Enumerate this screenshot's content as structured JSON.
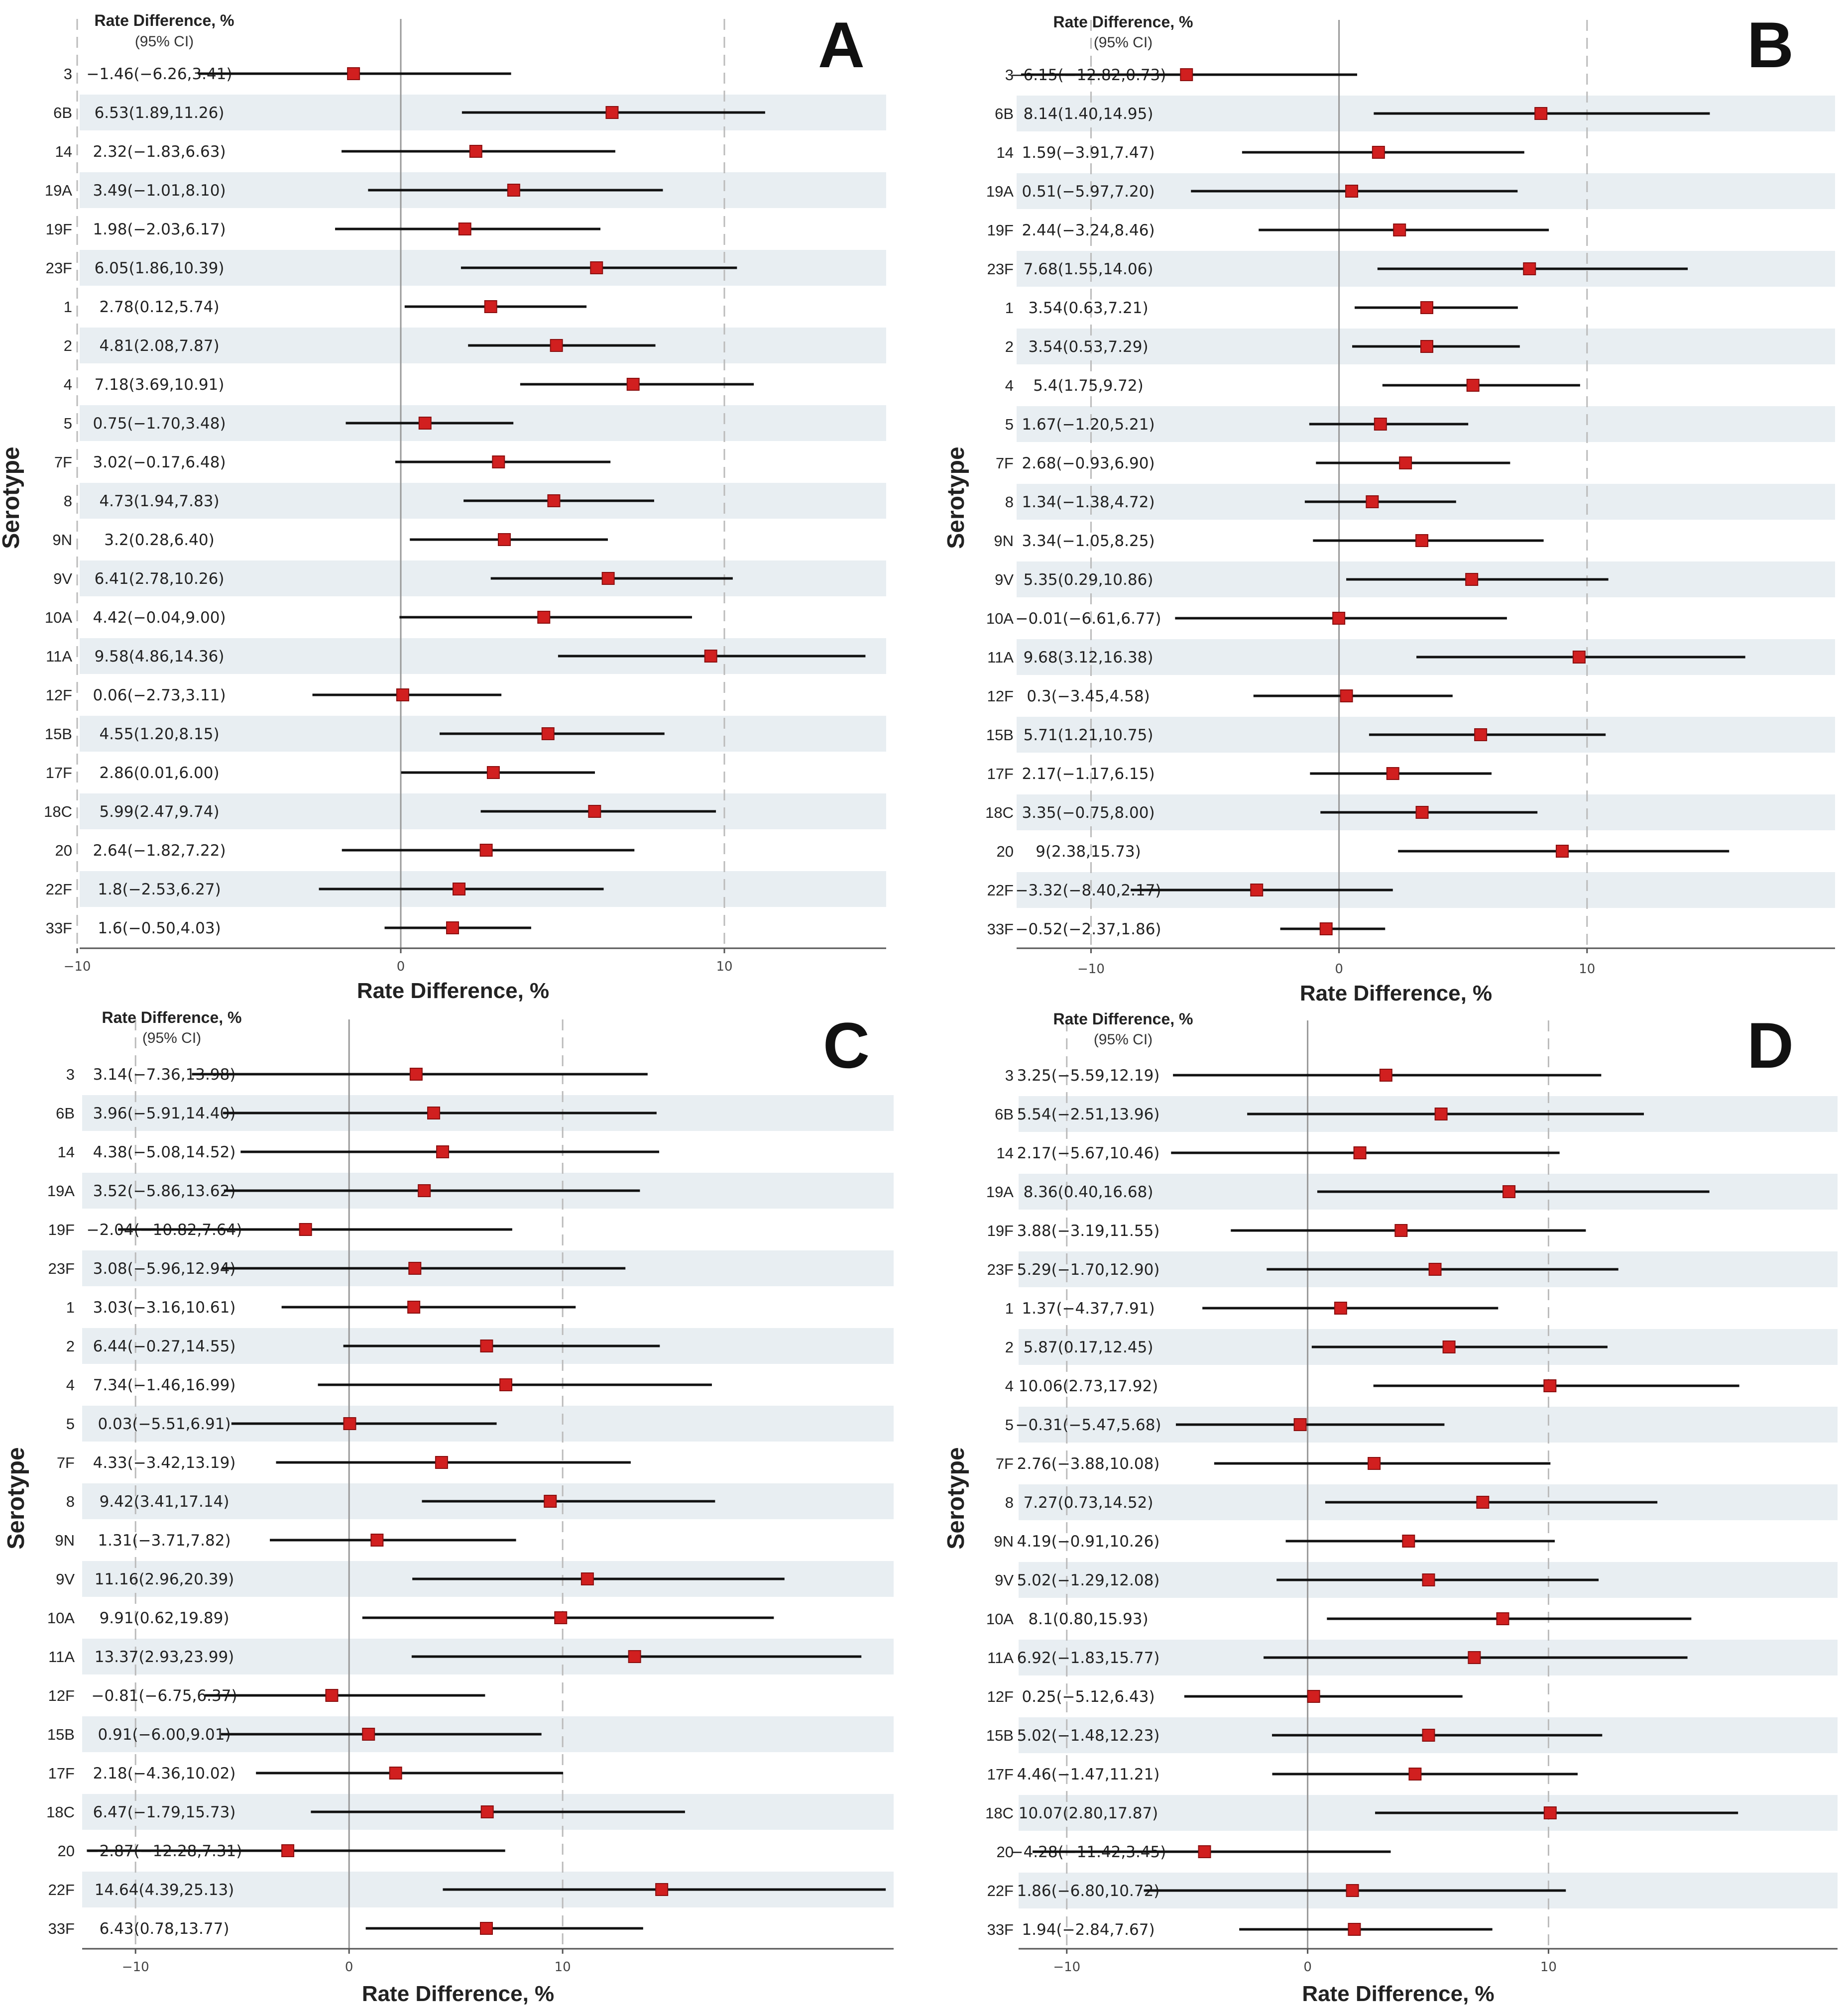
{
  "figure": {
    "shared": {
      "categories": [
        "3",
        "6B",
        "14",
        "19A",
        "19F",
        "23F",
        "1",
        "2",
        "4",
        "5",
        "7F",
        "8",
        "9N",
        "9V",
        "10A",
        "11A",
        "12F",
        "15B",
        "17F",
        "18C",
        "20",
        "22F",
        "33F"
      ],
      "ylabel": "Serotype",
      "xlabel": "Rate Difference, %",
      "header_line1": "Rate Difference, %",
      "header_line2": "(95% CI)",
      "colors": {
        "band": "#e8eef2",
        "marker": "#d11f1f",
        "line": "#111111",
        "axis": "#555555",
        "zero": "#999999",
        "dash": "#bbbbbb"
      }
    }
  },
  "chart_data": [
    {
      "panel": "A",
      "type": "forest",
      "xlim": [
        -10,
        15
      ],
      "xticks": [
        -10,
        0,
        10
      ],
      "tick_labels": [
        "−10",
        "0",
        "10"
      ],
      "estimates": [
        -1.46,
        6.53,
        2.32,
        3.49,
        1.98,
        6.05,
        2.78,
        4.81,
        7.18,
        0.75,
        3.02,
        4.73,
        3.2,
        6.41,
        4.42,
        9.58,
        0.06,
        4.55,
        2.86,
        5.99,
        2.64,
        1.8,
        1.6
      ],
      "lower": [
        -6.26,
        1.89,
        -1.83,
        -1.01,
        -2.03,
        1.86,
        0.12,
        2.08,
        3.69,
        -1.7,
        -0.17,
        1.94,
        0.28,
        2.78,
        -0.04,
        4.86,
        -2.73,
        1.2,
        0.01,
        2.47,
        -1.82,
        -2.53,
        -0.5
      ],
      "upper": [
        3.41,
        11.26,
        6.63,
        8.1,
        6.17,
        10.39,
        5.74,
        7.87,
        10.91,
        3.48,
        6.48,
        7.83,
        6.4,
        10.26,
        9.0,
        14.36,
        3.11,
        8.15,
        6.0,
        9.74,
        7.22,
        6.27,
        4.03
      ],
      "ci_labels": [
        "−1.46(−6.26,3.41)",
        "6.53(1.89,11.26)",
        "2.32(−1.83,6.63)",
        "3.49(−1.01,8.10)",
        "1.98(−2.03,6.17)",
        "6.05(1.86,10.39)",
        "2.78(0.12,5.74)",
        "4.81(2.08,7.87)",
        "7.18(3.69,10.91)",
        "0.75(−1.70,3.48)",
        "3.02(−0.17,6.48)",
        "4.73(1.94,7.83)",
        "3.2(0.28,6.40)",
        "6.41(2.78,10.26)",
        "4.42(−0.04,9.00)",
        "9.58(4.86,14.36)",
        "0.06(−2.73,3.11)",
        "4.55(1.20,8.15)",
        "2.86(0.01,6.00)",
        "5.99(2.47,9.74)",
        "2.64(−1.82,7.22)",
        "1.8(−2.53,6.27)",
        "1.6(−0.50,4.03)"
      ]
    },
    {
      "panel": "B",
      "type": "forest",
      "xlim": [
        -13,
        20
      ],
      "xticks": [
        -10,
        0,
        10
      ],
      "tick_labels": [
        "−10",
        "0",
        "10"
      ],
      "estimates": [
        -6.15,
        8.14,
        1.59,
        0.51,
        2.44,
        7.68,
        3.54,
        3.54,
        5.4,
        1.67,
        2.68,
        1.34,
        3.34,
        5.35,
        -0.01,
        9.68,
        0.3,
        5.71,
        2.17,
        3.35,
        9,
        -3.32,
        -0.52
      ],
      "lower": [
        -12.82,
        1.4,
        -3.91,
        -5.97,
        -3.24,
        1.55,
        0.63,
        0.53,
        1.75,
        -1.2,
        -0.93,
        -1.38,
        -1.05,
        0.29,
        -6.61,
        3.12,
        -3.45,
        1.21,
        -1.17,
        -0.75,
        2.38,
        -8.4,
        -2.37
      ],
      "upper": [
        0.73,
        14.95,
        7.47,
        7.2,
        8.46,
        14.06,
        7.21,
        7.29,
        9.72,
        5.21,
        6.9,
        4.72,
        8.25,
        10.86,
        6.77,
        16.38,
        4.58,
        10.75,
        6.15,
        8.0,
        15.73,
        2.17,
        1.86
      ],
      "ci_labels": [
        "−6.15(−12.82,0.73)",
        "8.14(1.40,14.95)",
        "1.59(−3.91,7.47)",
        "0.51(−5.97,7.20)",
        "2.44(−3.24,8.46)",
        "7.68(1.55,14.06)",
        "3.54(0.63,7.21)",
        "3.54(0.53,7.29)",
        "5.4(1.75,9.72)",
        "1.67(−1.20,5.21)",
        "2.68(−0.93,6.90)",
        "1.34(−1.38,4.72)",
        "3.34(−1.05,8.25)",
        "5.35(0.29,10.86)",
        "−0.01(−6.61,6.77)",
        "9.68(3.12,16.38)",
        "0.3(−3.45,4.58)",
        "5.71(1.21,10.75)",
        "2.17(−1.17,6.15)",
        "3.35(−0.75,8.00)",
        "9(2.38,15.73)",
        "−3.32(−8.40,2.17)",
        "−0.52(−2.37,1.86)"
      ]
    },
    {
      "panel": "C",
      "type": "forest",
      "xlim": [
        -12.5,
        25.5
      ],
      "xticks": [
        -10,
        0,
        10
      ],
      "tick_labels": [
        "−10",
        "0",
        "10"
      ],
      "estimates": [
        3.14,
        3.96,
        4.38,
        3.52,
        -2.04,
        3.08,
        3.03,
        6.44,
        7.34,
        0.03,
        4.33,
        9.42,
        1.31,
        11.16,
        9.91,
        13.37,
        -0.81,
        0.91,
        2.18,
        6.47,
        -2.87,
        14.64,
        6.43
      ],
      "lower": [
        -7.36,
        -5.91,
        -5.08,
        -5.86,
        -10.82,
        -5.96,
        -3.16,
        -0.27,
        -1.46,
        -5.51,
        -3.42,
        3.41,
        -3.71,
        2.96,
        0.62,
        2.93,
        -6.75,
        -6.0,
        -4.36,
        -1.79,
        -12.28,
        4.39,
        0.78
      ],
      "upper": [
        13.98,
        14.4,
        14.52,
        13.62,
        7.64,
        12.94,
        10.61,
        14.55,
        16.99,
        6.91,
        13.19,
        17.14,
        7.82,
        20.39,
        19.89,
        23.99,
        6.37,
        9.01,
        10.02,
        15.73,
        7.31,
        25.13,
        13.77
      ],
      "ci_labels": [
        "3.14(−7.36,13.98)",
        "3.96(−5.91,14.40)",
        "4.38(−5.08,14.52)",
        "3.52(−5.86,13.62)",
        "−2.04(−10.82,7.64)",
        "3.08(−5.96,12.94)",
        "3.03(−3.16,10.61)",
        "6.44(−0.27,14.55)",
        "7.34(−1.46,16.99)",
        "0.03(−5.51,6.91)",
        "4.33(−3.42,13.19)",
        "9.42(3.41,17.14)",
        "1.31(−3.71,7.82)",
        "11.16(2.96,20.39)",
        "9.91(0.62,19.89)",
        "13.37(2.93,23.99)",
        "−0.81(−6.75,6.37)",
        "0.91(−6.00,9.01)",
        "2.18(−4.36,10.02)",
        "6.47(−1.79,15.73)",
        "−2.87(−12.28,7.31)",
        "14.64(4.39,25.13)",
        "6.43(0.78,13.77)"
      ]
    },
    {
      "panel": "D",
      "type": "forest",
      "xlim": [
        -12,
        22
      ],
      "xticks": [
        -10,
        0,
        10
      ],
      "tick_labels": [
        "−10",
        "0",
        "10"
      ],
      "estimates": [
        3.25,
        5.54,
        2.17,
        8.36,
        3.88,
        5.29,
        1.37,
        5.87,
        10.06,
        -0.31,
        2.76,
        7.27,
        4.19,
        5.02,
        8.1,
        6.92,
        0.25,
        5.02,
        4.46,
        10.07,
        -4.28,
        1.86,
        1.94
      ],
      "lower": [
        -5.59,
        -2.51,
        -5.67,
        0.4,
        -3.19,
        -1.7,
        -4.37,
        0.17,
        2.73,
        -5.47,
        -3.88,
        0.73,
        -0.91,
        -1.29,
        0.8,
        -1.83,
        -5.12,
        -1.48,
        -1.47,
        2.8,
        -11.42,
        -6.8,
        -2.84
      ],
      "upper": [
        12.19,
        13.96,
        10.46,
        16.68,
        11.55,
        12.9,
        7.91,
        12.45,
        17.92,
        5.68,
        10.08,
        14.52,
        10.26,
        12.08,
        15.93,
        15.77,
        6.43,
        12.23,
        11.21,
        17.87,
        3.45,
        10.72,
        7.67
      ],
      "ci_labels": [
        "3.25(−5.59,12.19)",
        "5.54(−2.51,13.96)",
        "2.17(−5.67,10.46)",
        "8.36(0.40,16.68)",
        "3.88(−3.19,11.55)",
        "5.29(−1.70,12.90)",
        "1.37(−4.37,7.91)",
        "5.87(0.17,12.45)",
        "10.06(2.73,17.92)",
        "−0.31(−5.47,5.68)",
        "2.76(−3.88,10.08)",
        "7.27(0.73,14.52)",
        "4.19(−0.91,10.26)",
        "5.02(−1.29,12.08)",
        "8.1(0.80,15.93)",
        "6.92(−1.83,15.77)",
        "0.25(−5.12,6.43)",
        "5.02(−1.48,12.23)",
        "4.46(−1.47,11.21)",
        "10.07(2.80,17.87)",
        "−4.28(−11.42,3.45)",
        "1.86(−6.80,10.72)",
        "1.94(−2.84,7.67)"
      ]
    }
  ]
}
